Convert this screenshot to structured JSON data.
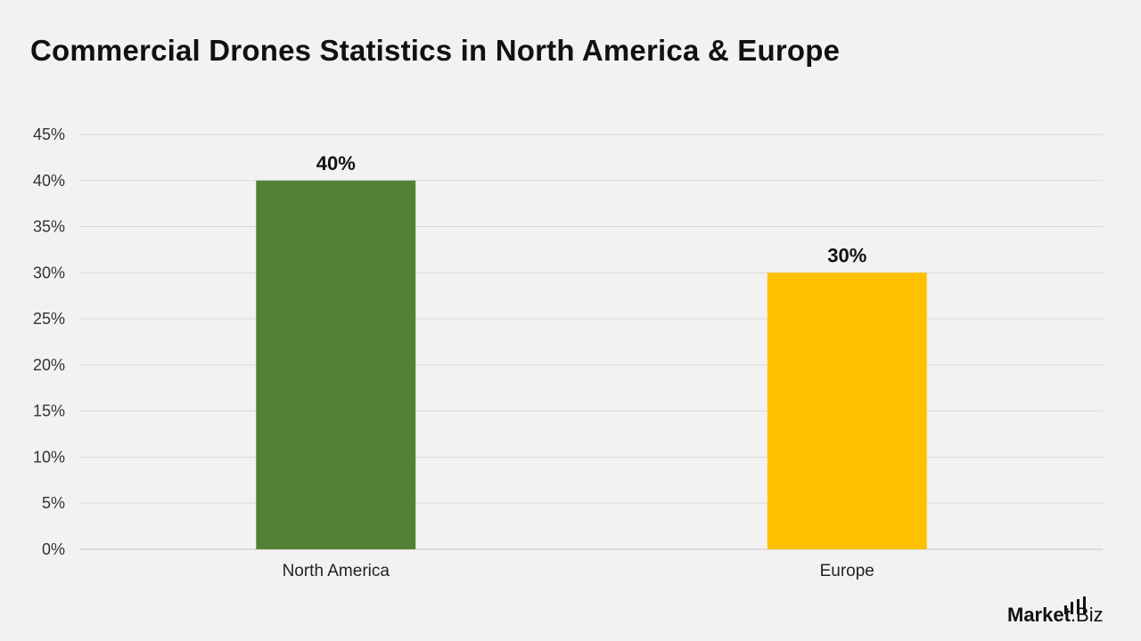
{
  "title": "Commercial Drones Statistics in North America & Europe",
  "brand": {
    "name_bold": "Market",
    "name_light": ".Biz"
  },
  "chart_data": {
    "type": "bar",
    "categories": [
      "North America",
      "Europe"
    ],
    "values": [
      40,
      30
    ],
    "data_labels": [
      "40%",
      "30%"
    ],
    "colors": [
      "#538135",
      "#ffc000"
    ],
    "ylim": [
      0,
      45
    ],
    "yticks": [
      0,
      5,
      10,
      15,
      20,
      25,
      30,
      35,
      40,
      45
    ],
    "ytick_labels": [
      "0%",
      "5%",
      "10%",
      "15%",
      "20%",
      "25%",
      "30%",
      "35%",
      "40%",
      "45%"
    ],
    "grid": true,
    "legend": "none"
  }
}
